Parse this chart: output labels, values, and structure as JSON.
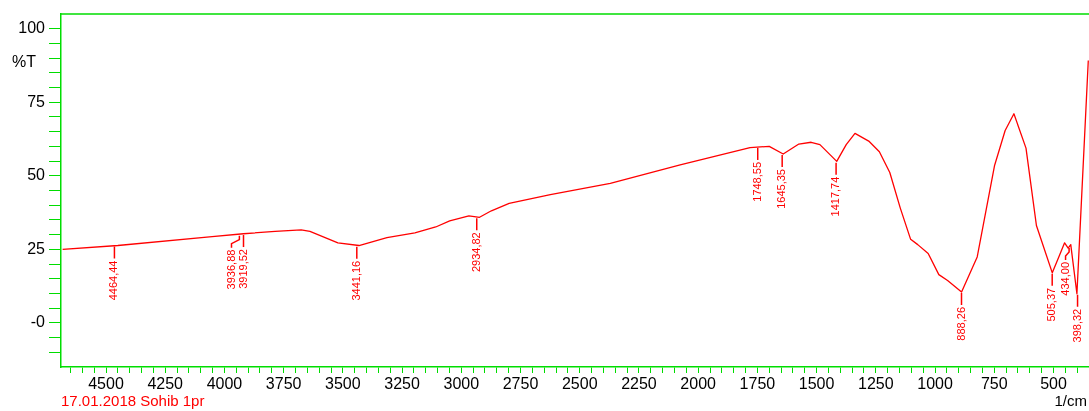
{
  "chart_data": {
    "type": "line",
    "ylabel": "%T",
    "xlabel": "1/cm",
    "legend": false,
    "grid": false,
    "marker": "none",
    "line_style": "solid",
    "xlim": [
      4690,
      350
    ],
    "ylim": [
      -15,
      105
    ],
    "xticks": [
      4500,
      4250,
      4000,
      3750,
      3500,
      3250,
      3000,
      2750,
      2500,
      2250,
      2000,
      1750,
      1500,
      1250,
      1000,
      750,
      500,
      {
        "value": 4650,
        "label": null
      },
      {
        "value": 4600,
        "label": null
      },
      {
        "value": 4550,
        "label": null
      },
      {
        "value": 4450,
        "label": null
      },
      {
        "value": 4400,
        "label": null
      },
      {
        "value": 4350,
        "label": null
      },
      {
        "value": 4300,
        "label": null
      },
      {
        "value": 4200,
        "label": null
      },
      {
        "value": 4150,
        "label": null
      },
      {
        "value": 4100,
        "label": null
      },
      {
        "value": 4050,
        "label": null
      },
      {
        "value": 3950,
        "label": null
      },
      {
        "value": 3900,
        "label": null
      },
      {
        "value": 3850,
        "label": null
      },
      {
        "value": 3800,
        "label": null
      },
      {
        "value": 3700,
        "label": null
      },
      {
        "value": 3650,
        "label": null
      },
      {
        "value": 3600,
        "label": null
      },
      {
        "value": 3550,
        "label": null
      },
      {
        "value": 3450,
        "label": null
      },
      {
        "value": 3400,
        "label": null
      },
      {
        "value": 3350,
        "label": null
      },
      {
        "value": 3300,
        "label": null
      },
      {
        "value": 3200,
        "label": null
      },
      {
        "value": 3150,
        "label": null
      },
      {
        "value": 3100,
        "label": null
      },
      {
        "value": 3050,
        "label": null
      },
      {
        "value": 2950,
        "label": null
      },
      {
        "value": 2900,
        "label": null
      },
      {
        "value": 2850,
        "label": null
      },
      {
        "value": 2800,
        "label": null
      },
      {
        "value": 2700,
        "label": null
      },
      {
        "value": 2650,
        "label": null
      },
      {
        "value": 2600,
        "label": null
      },
      {
        "value": 2550,
        "label": null
      },
      {
        "value": 2450,
        "label": null
      },
      {
        "value": 2400,
        "label": null
      },
      {
        "value": 2350,
        "label": null
      },
      {
        "value": 2300,
        "label": null
      },
      {
        "value": 2200,
        "label": null
      },
      {
        "value": 2150,
        "label": null
      },
      {
        "value": 2100,
        "label": null
      },
      {
        "value": 2050,
        "label": null
      },
      {
        "value": 1950,
        "label": null
      },
      {
        "value": 1900,
        "label": null
      },
      {
        "value": 1850,
        "label": null
      },
      {
        "value": 1800,
        "label": null
      },
      {
        "value": 1700,
        "label": null
      },
      {
        "value": 1650,
        "label": null
      },
      {
        "value": 1600,
        "label": null
      },
      {
        "value": 1550,
        "label": null
      },
      {
        "value": 1450,
        "label": null
      },
      {
        "value": 1400,
        "label": null
      },
      {
        "value": 1350,
        "label": null
      },
      {
        "value": 1300,
        "label": null
      },
      {
        "value": 1200,
        "label": null
      },
      {
        "value": 1150,
        "label": null
      },
      {
        "value": 1100,
        "label": null
      },
      {
        "value": 1050,
        "label": null
      },
      {
        "value": 950,
        "label": null
      },
      {
        "value": 900,
        "label": null
      },
      {
        "value": 850,
        "label": null
      },
      {
        "value": 800,
        "label": null
      },
      {
        "value": 700,
        "label": null
      },
      {
        "value": 650,
        "label": null
      },
      {
        "value": 600,
        "label": null
      },
      {
        "value": 550,
        "label": null
      },
      {
        "value": 450,
        "label": null
      },
      {
        "value": 400,
        "label": null
      }
    ],
    "yticks": [
      100,
      75,
      50,
      25,
      {
        "value": 0,
        "label": "-0"
      },
      {
        "value": 95,
        "label": null
      },
      {
        "value": 90,
        "label": null
      },
      {
        "value": 85,
        "label": null
      },
      {
        "value": 80,
        "label": null
      },
      {
        "value": 70,
        "label": null
      },
      {
        "value": 65,
        "label": null
      },
      {
        "value": 60,
        "label": null
      },
      {
        "value": 55,
        "label": null
      },
      {
        "value": 45,
        "label": null
      },
      {
        "value": 40,
        "label": null
      },
      {
        "value": 35,
        "label": null
      },
      {
        "value": 30,
        "label": null
      },
      {
        "value": 20,
        "label": null
      },
      {
        "value": 15,
        "label": null
      },
      {
        "value": 10,
        "label": null
      },
      {
        "value": 5,
        "label": null
      },
      {
        "value": -5,
        "label": null
      },
      {
        "value": -10,
        "label": null
      }
    ],
    "x": [
      4683,
      4450,
      4052,
      3920,
      3786,
      3676,
      3639,
      3521,
      3432,
      3314,
      3196,
      3108,
      3049,
      2968,
      2923,
      2873,
      2798,
      2624,
      2371,
      2076,
      1781,
      1700,
      1641,
      1575,
      1523,
      1486,
      1415,
      1375,
      1338,
      1280,
      1235,
      1191,
      1147,
      1103,
      1073,
      1029,
      984,
      947,
      888,
      822,
      749,
      704,
      667,
      616,
      572,
      505,
      453,
      438,
      427,
      401,
      353
    ],
    "series": [
      {
        "color": "#ff0000",
        "values": [
          25.0,
          26.3,
          29.3,
          30.3,
          31.1,
          31.6,
          31.1,
          27.2,
          26.3,
          29.0,
          30.6,
          32.6,
          34.7,
          36.4,
          35.9,
          38.1,
          40.6,
          43.6,
          47.4,
          53.7,
          59.6,
          60.0,
          57.4,
          60.8,
          61.4,
          60.6,
          54.9,
          60.6,
          64.4,
          61.8,
          58.2,
          51.1,
          39.1,
          28.4,
          26.6,
          23.6,
          16.4,
          14.4,
          10.5,
          22.4,
          53.4,
          65.4,
          71.1,
          59.4,
          33.1,
          17.0,
          27.2,
          25.4,
          26.6,
          9.9,
          89.2
        ]
      }
    ],
    "annotations": [
      {
        "text": "4464,44",
        "x": 4464.44,
        "y": 26.3
      },
      {
        "text": "3936,88",
        "x": 3936.88,
        "y": 30.0
      },
      {
        "text": "3919,52",
        "x": 3919.52,
        "y": 30.2
      },
      {
        "text": "3441,16",
        "x": 3441.16,
        "y": 26.2
      },
      {
        "text": "2934,82",
        "x": 2934.82,
        "y": 35.9
      },
      {
        "text": "1748,55",
        "x": 1748.55,
        "y": 59.8
      },
      {
        "text": "1645,35",
        "x": 1645.35,
        "y": 57.4
      },
      {
        "text": "1417,74",
        "x": 1417.74,
        "y": 54.8
      },
      {
        "text": "888,26",
        "x": 888.26,
        "y": 10.5
      },
      {
        "text": "505,37",
        "x": 505.37,
        "y": 17.0
      },
      {
        "text": "434,00",
        "x": 434.0,
        "y": 25.8
      },
      {
        "text": "398,32",
        "x": 398.32,
        "y": 9.9
      },
      "17.01.2018 Sohib 1pr"
    ]
  }
}
